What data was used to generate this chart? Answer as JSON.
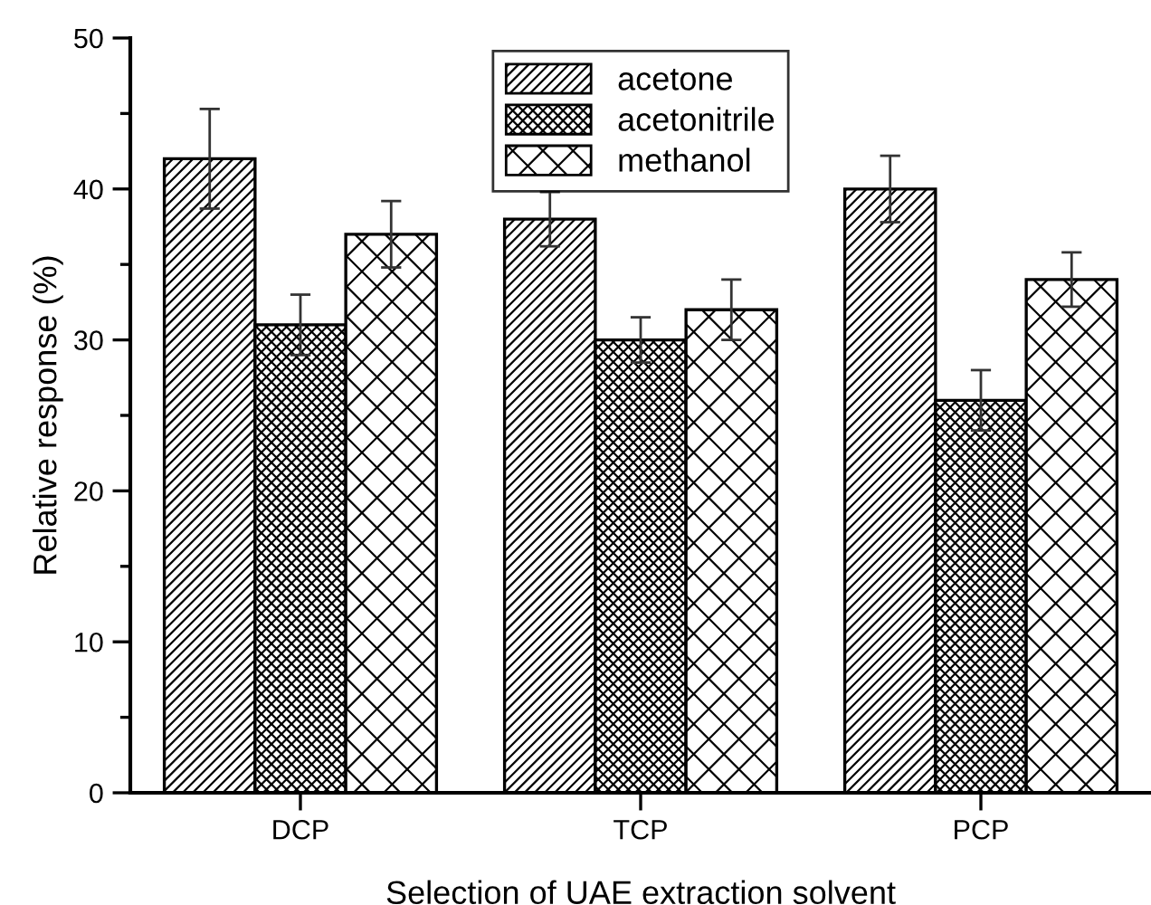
{
  "chart_data": {
    "type": "bar",
    "xlabel": "Selection of UAE extraction solvent",
    "ylabel": "Relative response (%)",
    "categories": [
      "DCP",
      "TCP",
      "PCP"
    ],
    "series": [
      {
        "name": "acetone",
        "color": "#000000",
        "values": [
          42,
          38,
          40
        ],
        "errors": [
          3.3,
          1.8,
          2.2
        ]
      },
      {
        "name": "acetonitrile",
        "color": "#000000",
        "values": [
          31,
          30,
          26
        ],
        "errors": [
          2,
          1.5,
          2
        ]
      },
      {
        "name": "methanol",
        "color": "#000000",
        "values": [
          37,
          32,
          34
        ],
        "errors": [
          2.2,
          2,
          1.8
        ]
      }
    ],
    "ylim": [
      0,
      50
    ],
    "yticks": [
      0,
      {
        "value": 5,
        "label": null
      },
      10,
      {
        "value": 15,
        "label": null
      },
      20,
      {
        "value": 25,
        "label": null
      },
      30,
      {
        "value": 35,
        "label": null
      },
      40,
      {
        "value": 45,
        "label": null
      },
      50
    ],
    "legend": "top",
    "grid": false
  }
}
